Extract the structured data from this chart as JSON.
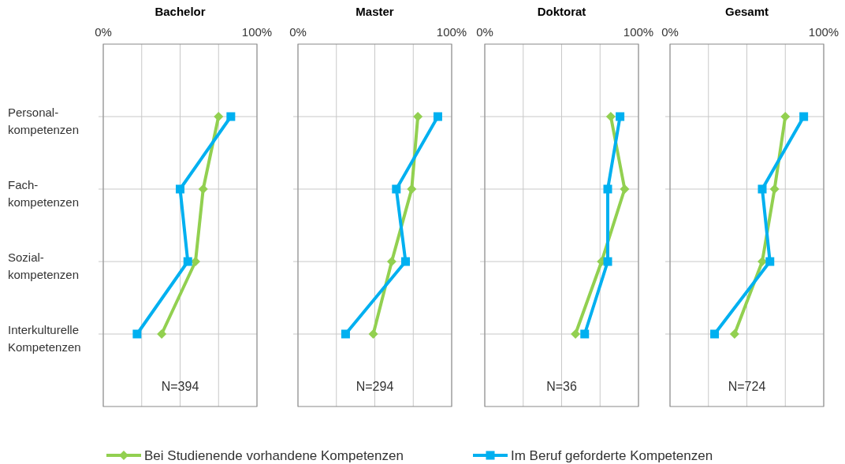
{
  "chart_data": [
    {
      "type": "line",
      "orientation": "horizontal",
      "title": "Bachelor",
      "categories": [
        "Personal-\nkompetenzen",
        "Fach-\nkompetenzen",
        "Sozial-\nkompetenzen",
        "Interkulturelle\nKompetenzen"
      ],
      "xlim": [
        0,
        100
      ],
      "xticks": [
        {
          "value": 0,
          "label": "0%"
        },
        {
          "value": 25,
          "label": null
        },
        {
          "value": 50,
          "label": null
        },
        {
          "value": 75,
          "label": null
        },
        {
          "value": 100,
          "label": "100%"
        }
      ],
      "grid": true,
      "legend": "bottom",
      "annotations": [
        "N=394"
      ],
      "series": [
        {
          "name": "Bei Studienende vorhandene Kompetenzen",
          "color": "#92d050",
          "marker": "diamond",
          "values": [
            75,
            65,
            60,
            38
          ]
        },
        {
          "name": "Im Beruf geforderte Kompetenzen",
          "color": "#00b0f0",
          "marker": "square",
          "values": [
            83,
            50,
            55,
            22
          ]
        }
      ]
    },
    {
      "type": "line",
      "orientation": "horizontal",
      "title": "Master",
      "categories": [
        null,
        null,
        null,
        null
      ],
      "tick_labels": "x",
      "xlim": [
        0,
        100
      ],
      "xticks": [
        {
          "value": 0,
          "label": "0%"
        },
        {
          "value": 25,
          "label": null
        },
        {
          "value": 50,
          "label": null
        },
        {
          "value": 75,
          "label": null
        },
        {
          "value": 100,
          "label": "100%"
        }
      ],
      "grid": true,
      "annotations": [
        "N=294"
      ],
      "series": [
        {
          "color": "#92d050",
          "marker": "diamond",
          "values": [
            78,
            74,
            61,
            49
          ]
        },
        {
          "color": "#00b0f0",
          "marker": "square",
          "values": [
            91,
            64,
            70,
            31
          ]
        }
      ]
    },
    {
      "type": "line",
      "orientation": "horizontal",
      "title": "Doktorat",
      "categories": [
        null,
        null,
        null,
        null
      ],
      "tick_labels": "x",
      "xlim": [
        0,
        100
      ],
      "xticks": [
        {
          "value": 0,
          "label": "0%"
        },
        {
          "value": 25,
          "label": null
        },
        {
          "value": 50,
          "label": null
        },
        {
          "value": 75,
          "label": null
        },
        {
          "value": 100,
          "label": "100%"
        }
      ],
      "grid": true,
      "annotations": [
        "N=36"
      ],
      "series": [
        {
          "color": "#92d050",
          "marker": "diamond",
          "values": [
            82,
            91,
            76,
            59
          ]
        },
        {
          "color": "#00b0f0",
          "marker": "square",
          "values": [
            88,
            80,
            80,
            65
          ]
        }
      ]
    },
    {
      "type": "line",
      "orientation": "horizontal",
      "title": "Gesamt",
      "categories": [
        null,
        null,
        null,
        null
      ],
      "tick_labels": "x",
      "xlim": [
        0,
        100
      ],
      "xticks": [
        {
          "value": 0,
          "label": "0%"
        },
        {
          "value": 25,
          "label": null
        },
        {
          "value": 50,
          "label": null
        },
        {
          "value": 75,
          "label": null
        },
        {
          "value": 100,
          "label": "100%"
        }
      ],
      "grid": true,
      "annotations": [
        "N=724"
      ],
      "series": [
        {
          "color": "#92d050",
          "marker": "diamond",
          "values": [
            75,
            68,
            60,
            42
          ]
        },
        {
          "color": "#00b0f0",
          "marker": "square",
          "values": [
            87,
            60,
            65,
            29
          ]
        }
      ]
    }
  ]
}
